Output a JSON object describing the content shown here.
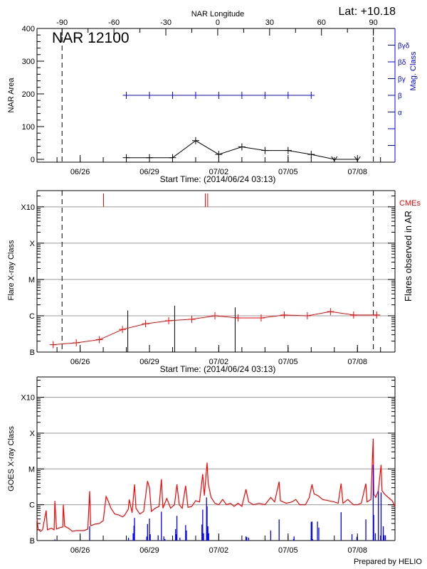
{
  "title": "NAR 12100",
  "latitude_label": "Lat: +10.18",
  "prepared_by": "Prepared by HELIO",
  "colors": {
    "area": "#000000",
    "mag_class": "#0000ff",
    "flare_class": "#ff0000",
    "cme": "#ff0000",
    "flares_in_ar": "#000000",
    "goes_flux": "#ff0000",
    "goes_events": "#0000ff",
    "grid": "#999999"
  },
  "chart_data": [
    {
      "type": "line",
      "panel": "nar-area",
      "title": "NAR 12100",
      "xlabel": "Start Time: (2014/06/24 03:13)",
      "ylabel": "NAR Area",
      "ylabel_right": "Mag. Class",
      "top_axis_label": "NAR Longitude",
      "xlim": [
        "2014-06-24T03:13",
        "2014-07-09T15:00"
      ],
      "ylim": [
        -8.7,
        400
      ],
      "longitude_lim": [
        -104.5,
        102.5
      ],
      "limb_longitudes": [
        -90,
        90
      ],
      "x_ticks": [
        {
          "label": "06/26",
          "date": "2014-06-26T00:00"
        },
        {
          "label": "06/29",
          "date": "2014-06-29T00:00"
        },
        {
          "label": "07/02",
          "date": "2014-07-02T00:00"
        },
        {
          "label": "07/05",
          "date": "2014-07-05T00:00"
        },
        {
          "label": "07/08",
          "date": "2014-07-08T00:00"
        }
      ],
      "y_ticks": [
        {
          "label": "0",
          "value": 0
        },
        {
          "label": "100",
          "value": 100
        },
        {
          "label": "200",
          "value": 200
        },
        {
          "label": "300",
          "value": 300
        },
        {
          "label": "400",
          "value": 400
        }
      ],
      "longitude_ticks": [
        {
          "label": "-90",
          "value": -90
        },
        {
          "label": "-60",
          "value": -60
        },
        {
          "label": "-30",
          "value": -30
        },
        {
          "label": "0",
          "value": 0
        },
        {
          "label": "30",
          "value": 30
        },
        {
          "label": "60",
          "value": 60
        },
        {
          "label": "90",
          "value": 90
        }
      ],
      "mag_class_ticks": [
        "",
        "",
        "α",
        "β",
        "βγ",
        "βδ",
        "βγδ"
      ],
      "series": [
        {
          "name": "NAR Area",
          "x": [
            "2014-06-28T00:00",
            "2014-06-29T00:00",
            "2014-06-30T00:00",
            "2014-07-01T00:00",
            "2014-07-02T00:00",
            "2014-07-03T00:00",
            "2014-07-04T00:00",
            "2014-07-05T00:00",
            "2014-07-06T00:00",
            "2014-07-07T00:00",
            "2014-07-08T00:00"
          ],
          "values": [
            5,
            5,
            5,
            57,
            15,
            38,
            27,
            27,
            15,
            0,
            0
          ]
        },
        {
          "name": "Mag. Class",
          "x": [
            "2014-06-28T00:00",
            "2014-06-29T00:00",
            "2014-06-30T00:00",
            "2014-07-01T00:00",
            "2014-07-02T00:00",
            "2014-07-03T00:00",
            "2014-07-04T00:00",
            "2014-07-05T00:00",
            "2014-07-06T00:00"
          ],
          "values": [
            "β",
            "β",
            "β",
            "β",
            "β",
            "β",
            "β",
            "β",
            "β"
          ]
        }
      ]
    },
    {
      "type": "line",
      "panel": "flare-class",
      "xlabel": "Start Time: (2014/06/24 03:13)",
      "ylabel": "Flare X-ray Class",
      "ylabel_right": "Flares observed in AR",
      "cme_label": "CMEs",
      "yscale": "log",
      "xlim": [
        "2014-06-24T03:13",
        "2014-07-09T15:00"
      ],
      "ylim": [
        1e-07,
        0.0028
      ],
      "y_ticks": [
        {
          "label": "B",
          "value": 1e-07
        },
        {
          "label": "C",
          "value": 1e-06
        },
        {
          "label": "M",
          "value": 1e-05
        },
        {
          "label": "X",
          "value": 0.0001
        },
        {
          "label": "X10",
          "value": 0.001
        }
      ],
      "grid_values": [
        1e-06,
        1e-05,
        0.0001,
        0.001
      ],
      "x_ticks": [
        {
          "label": "06/26",
          "date": "2014-06-26T00:00"
        },
        {
          "label": "06/29",
          "date": "2014-06-29T00:00"
        },
        {
          "label": "07/02",
          "date": "2014-07-02T00:00"
        },
        {
          "label": "07/05",
          "date": "2014-07-05T00:00"
        },
        {
          "label": "07/08",
          "date": "2014-07-08T00:00"
        }
      ],
      "series": [
        {
          "x": [
            "2014-06-24T20:00",
            "2014-06-25T20:00",
            "2014-06-26T20:00",
            "2014-06-27T20:00",
            "2014-06-28T20:00",
            "2014-06-29T20:00",
            "2014-06-30T20:00",
            "2014-07-01T20:00",
            "2014-07-02T20:00",
            "2014-07-03T20:00",
            "2014-07-04T20:00",
            "2014-07-05T20:00",
            "2014-07-06T20:00",
            "2014-07-07T20:00",
            "2014-07-08T20:00"
          ],
          "values": [
            1.6e-07,
            1.8e-07,
            2.2e-07,
            4.2e-07,
            6e-07,
            7.3e-07,
            8e-07,
            1e-06,
            8.7e-07,
            8.7e-07,
            1.05e-06,
            1e-06,
            1.3e-06,
            1.05e-06,
            1.05e-06
          ]
        }
      ],
      "flares_in_ar": [
        {
          "date": "2014-06-28T01:30",
          "flux": 1.4e-06
        },
        {
          "date": "2014-06-30T02:10",
          "flux": 1.9e-06
        },
        {
          "date": "2014-07-02T17:00",
          "flux": 1.7e-06
        }
      ],
      "cmes": [
        "2014-06-27T00:20",
        "2014-07-01T10:00",
        "2014-07-01T12:30"
      ],
      "limb_longitudes": [
        -90,
        90
      ]
    },
    {
      "type": "line",
      "panel": "goes",
      "ylabel": "GOES X-ray Class",
      "yscale": "log",
      "xlim": [
        "2014-06-24T03:13",
        "2014-07-09T15:00"
      ],
      "ylim": [
        1e-07,
        0.0037
      ],
      "y_ticks": [
        {
          "label": "B",
          "value": 1e-07
        },
        {
          "label": "C",
          "value": 1e-06
        },
        {
          "label": "M",
          "value": 1e-05
        },
        {
          "label": "X",
          "value": 0.0001
        },
        {
          "label": "X10",
          "value": 0.001
        }
      ],
      "grid_values": [
        1e-06,
        1e-05,
        0.0001,
        0.001
      ],
      "x_ticks": [
        {
          "label": "06/26",
          "date": "2014-06-26T00:00"
        },
        {
          "label": "06/29",
          "date": "2014-06-29T00:00"
        },
        {
          "label": "07/02",
          "date": "2014-07-02T00:00"
        },
        {
          "label": "07/05",
          "date": "2014-07-05T00:00"
        },
        {
          "label": "07/08",
          "date": "2014-07-08T00:00"
        }
      ],
      "series": [
        {
          "x": [
            "2014-06-24T03:13",
            "2014-06-24T04:30",
            "2014-06-24T07:00",
            "2014-06-24T09:00",
            "2014-06-24T12:45",
            "2014-06-24T14:00",
            "2014-06-24T18:00",
            "2014-06-24T21:00",
            "2014-06-24T21:45",
            "2014-06-24T23:30",
            "2014-06-25T03:00",
            "2014-06-25T06:00",
            "2014-06-25T06:30",
            "2014-06-25T08:00",
            "2014-06-25T12:00",
            "2014-06-25T16:00",
            "2014-06-25T20:00",
            "2014-06-26T00:00",
            "2014-06-26T04:00",
            "2014-06-26T08:00",
            "2014-06-26T09:53",
            "2014-06-26T11:00",
            "2014-06-26T16:00",
            "2014-06-26T20:00",
            "2014-06-27T00:00",
            "2014-06-27T03:00",
            "2014-06-27T05:00",
            "2014-06-27T08:00",
            "2014-06-27T12:00",
            "2014-06-27T16:00",
            "2014-06-27T20:00",
            "2014-06-27T22:00",
            "2014-06-28T02:00",
            "2014-06-28T03:00",
            "2014-06-28T06:00",
            "2014-06-28T08:30",
            "2014-06-28T10:00",
            "2014-06-28T14:00",
            "2014-06-28T18:00",
            "2014-06-28T22:00",
            "2014-06-29T00:00",
            "2014-06-29T02:00",
            "2014-06-29T06:00",
            "2014-06-29T10:00",
            "2014-06-29T12:25",
            "2014-06-29T14:00",
            "2014-06-29T18:00",
            "2014-06-29T22:00",
            "2014-06-30T02:00",
            "2014-06-30T04:31",
            "2014-06-30T07:00",
            "2014-06-30T10:00",
            "2014-06-30T13:34",
            "2014-06-30T16:00",
            "2014-06-30T20:00",
            "2014-07-01T00:00",
            "2014-07-01T04:00",
            "2014-07-01T07:20",
            "2014-07-01T09:00",
            "2014-07-01T11:52",
            "2014-07-01T13:00",
            "2014-07-01T16:00",
            "2014-07-01T20:00",
            "2014-07-02T00:00",
            "2014-07-02T04:00",
            "2014-07-02T08:00",
            "2014-07-02T12:00",
            "2014-07-02T16:00",
            "2014-07-02T20:00",
            "2014-07-03T00:00",
            "2014-07-03T04:14",
            "2014-07-03T07:00",
            "2014-07-03T12:00",
            "2014-07-03T18:00",
            "2014-07-04T00:00",
            "2014-07-04T06:00",
            "2014-07-04T10:00",
            "2014-07-04T14:41",
            "2014-07-04T16:00",
            "2014-07-04T22:00",
            "2014-07-05T04:00",
            "2014-07-05T08:00",
            "2014-07-05T12:00",
            "2014-07-05T18:00",
            "2014-07-05T22:00",
            "2014-07-06T00:50",
            "2014-07-06T03:00",
            "2014-07-06T07:00",
            "2014-07-06T12:00",
            "2014-07-06T18:00",
            "2014-07-07T00:00",
            "2014-07-07T04:00",
            "2014-07-07T07:03",
            "2014-07-07T09:00",
            "2014-07-07T14:00",
            "2014-07-07T20:00",
            "2014-07-08T00:00",
            "2014-07-08T04:00",
            "2014-07-08T08:46",
            "2014-07-08T10:00",
            "2014-07-08T14:00",
            "2014-07-08T16:22",
            "2014-07-08T17:00",
            "2014-07-08T19:00",
            "2014-07-08T21:45",
            "2014-07-09T00:35",
            "2014-07-09T01:30",
            "2014-07-09T04:00",
            "2014-07-09T08:00",
            "2014-07-09T12:00",
            "2014-07-09T15:00"
          ],
          "values": [
            4e-07,
            2e-07,
            1.8e-07,
            2e-07,
            6.9e-07,
            2e-07,
            2.2e-07,
            2e-07,
            1.28e-06,
            2.1e-07,
            2.3e-07,
            2.4e-07,
            1e-06,
            2.5e-07,
            2.2e-07,
            1.8e-07,
            1.9e-07,
            1.9e-07,
            1.9e-07,
            2.1e-07,
            2.4e-06,
            2.6e-07,
            2.9e-07,
            3e-07,
            3.6e-07,
            1.7e-06,
            1.3e-06,
            8e-07,
            5.5e-07,
            5.2e-07,
            4.6e-07,
            5e-07,
            7.5e-07,
            1.4e-06,
            6e-07,
            3.7e-06,
            8e-07,
            5.5e-07,
            6.5e-07,
            4.6e-06,
            3e-06,
            6.5e-07,
            8e-07,
            9e-07,
            5.2e-06,
            8e-07,
            1.5e-06,
            8e-07,
            1e-06,
            3.7e-06,
            1e-06,
            8e-07,
            3.4e-06,
            8.5e-07,
            9e-07,
            1.3e-06,
            1.2e-06,
            7.2e-06,
            1.8e-06,
            1.5e-05,
            4e-06,
            1.6e-06,
            1.1e-06,
            1e-06,
            1.4e-06,
            1e-06,
            1.1e-06,
            9e-07,
            1.1e-06,
            9e-07,
            2.7e-06,
            1.2e-06,
            1e-06,
            1.1e-06,
            1e-06,
            1.6e-06,
            1.2e-06,
            4.4e-06,
            1.3e-06,
            1.1e-06,
            1.2e-06,
            1.4e-06,
            1e-06,
            1e-06,
            1.6e-06,
            3.7e-06,
            2e-06,
            1.8e-06,
            1.4e-06,
            1.3e-06,
            1.2e-06,
            1.1e-06,
            3.9e-06,
            1.1e-06,
            1.4e-06,
            1e-06,
            1e-06,
            1.1e-06,
            3.9e-06,
            1.2e-06,
            1.4e-06,
            7e-05,
            2e-06,
            1.6e-06,
            2.5e-06,
            1.3e-05,
            2.5e-06,
            2e-06,
            1.6e-06,
            1.3e-06,
            9e-07
          ]
        }
      ],
      "events": [
        {
          "date": "2014-06-24T21:45",
          "flux": 1.08e-07
        },
        {
          "date": "2014-06-26T09:53",
          "flux": 2.5e-07
        },
        {
          "date": "2014-06-28T02:15",
          "flux": 1.2e-07
        },
        {
          "date": "2014-06-28T07:04",
          "flux": 1.6e-07
        },
        {
          "date": "2014-06-28T07:54",
          "flux": 2.6e-07
        },
        {
          "date": "2014-06-28T08:28",
          "flux": 4.3e-07
        },
        {
          "date": "2014-06-28T21:10",
          "flux": 1.3e-07
        },
        {
          "date": "2014-06-28T22:02",
          "flux": 2.9e-07
        },
        {
          "date": "2014-06-29T00:00",
          "flux": 4.1e-07
        },
        {
          "date": "2014-06-29T00:50",
          "flux": 1.5e-07
        },
        {
          "date": "2014-06-29T05:38",
          "flux": 1e-07
        },
        {
          "date": "2014-06-29T09:02",
          "flux": 1.4e-07
        },
        {
          "date": "2014-06-29T12:25",
          "flux": 6.4e-07
        },
        {
          "date": "2014-06-29T14:58",
          "flux": 1.3e-07
        },
        {
          "date": "2014-06-29T16:06",
          "flux": 1.1e-07
        },
        {
          "date": "2014-06-30T03:06",
          "flux": 2.1e-07
        },
        {
          "date": "2014-06-30T03:40",
          "flux": 1.5e-07
        },
        {
          "date": "2014-06-30T04:31",
          "flux": 4.9e-07
        },
        {
          "date": "2014-06-30T07:38",
          "flux": 1.2e-07
        },
        {
          "date": "2014-06-30T13:34",
          "flux": 2.7e-07
        },
        {
          "date": "2014-06-30T14:24",
          "flux": 1.9e-07
        },
        {
          "date": "2014-07-01T06:30",
          "flux": 2.8e-07
        },
        {
          "date": "2014-07-01T07:20",
          "flux": 7.3e-07
        },
        {
          "date": "2014-07-01T08:11",
          "flux": 1.6e-07
        },
        {
          "date": "2014-07-01T11:18",
          "flux": 1.6e-06
        },
        {
          "date": "2014-07-01T11:52",
          "flux": 9e-07
        },
        {
          "date": "2014-07-01T12:42",
          "flux": 2.5e-07
        },
        {
          "date": "2014-07-01T13:33",
          "flux": 1.6e-07
        },
        {
          "date": "2014-07-03T04:14",
          "flux": 1.3e-07
        },
        {
          "date": "2014-07-03T05:05",
          "flux": 1.25e-07
        },
        {
          "date": "2014-07-03T07:03",
          "flux": 1.2e-07
        },
        {
          "date": "2014-07-04T05:56",
          "flux": 1.9e-07
        },
        {
          "date": "2014-07-04T14:41",
          "flux": 3.9e-07
        },
        {
          "date": "2014-07-05T05:38",
          "flux": 1.1e-07
        },
        {
          "date": "2014-07-05T06:13",
          "flux": 1.3e-07
        },
        {
          "date": "2014-07-06T00:00",
          "flux": 3.3e-07
        },
        {
          "date": "2014-07-06T00:50",
          "flux": 3.4e-07
        },
        {
          "date": "2014-07-06T01:25",
          "flux": 1.1e-07
        },
        {
          "date": "2014-07-06T06:30",
          "flux": 3.4e-07
        },
        {
          "date": "2014-07-06T07:54",
          "flux": 2.3e-07
        },
        {
          "date": "2014-07-07T07:03",
          "flux": 6.2e-07
        },
        {
          "date": "2014-07-07T18:21",
          "flux": 1.5e-07
        },
        {
          "date": "2014-07-07T23:26",
          "flux": 1.25e-07
        },
        {
          "date": "2014-07-08T08:46",
          "flux": 3.9e-07
        },
        {
          "date": "2014-07-08T16:22",
          "flux": 1.3e-05
        },
        {
          "date": "2014-07-08T16:56",
          "flux": 5.2e-07
        },
        {
          "date": "2014-07-08T18:38",
          "flux": 1.6e-07
        },
        {
          "date": "2014-07-08T21:45",
          "flux": 2.4e-06
        },
        {
          "date": "2014-07-09T00:35",
          "flux": 2.2e-06
        },
        {
          "date": "2014-07-09T02:50",
          "flux": 2.5e-07
        },
        {
          "date": "2014-07-09T03:40",
          "flux": 1.4e-07
        },
        {
          "date": "2014-07-09T05:05",
          "flux": 1.4e-07
        }
      ]
    }
  ]
}
